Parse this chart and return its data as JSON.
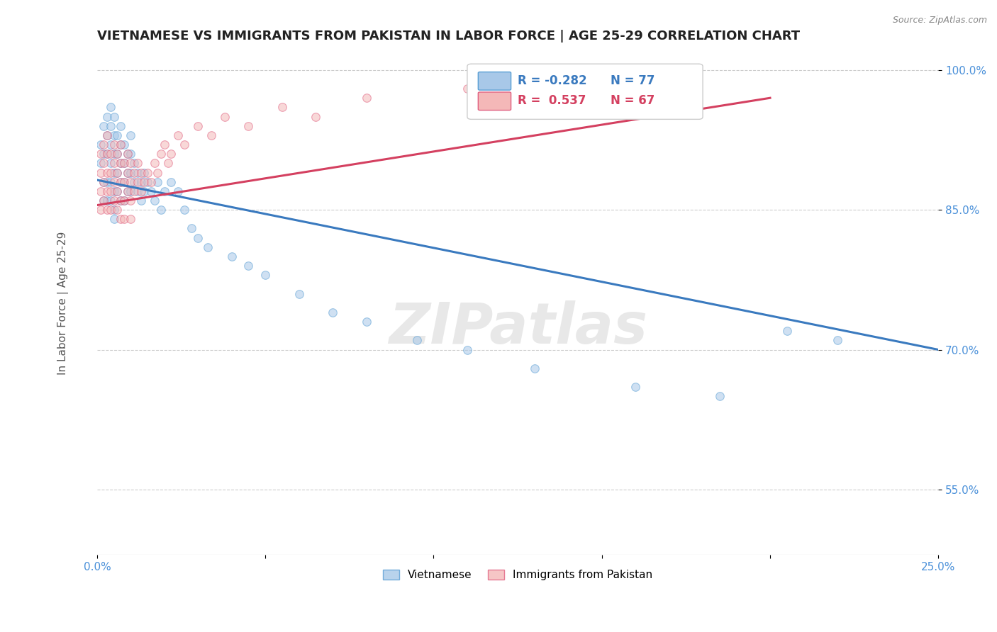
{
  "title": "VIETNAMESE VS IMMIGRANTS FROM PAKISTAN IN LABOR FORCE | AGE 25-29 CORRELATION CHART",
  "source": "Source: ZipAtlas.com",
  "ylabel": "In Labor Force | Age 25-29",
  "xlim": [
    0.0,
    0.25
  ],
  "ylim": [
    0.48,
    1.02
  ],
  "xticks": [
    0.0,
    0.05,
    0.1,
    0.15,
    0.2,
    0.25
  ],
  "yticks": [
    0.55,
    0.7,
    0.85,
    1.0
  ],
  "ytick_labels": [
    "55.0%",
    "70.0%",
    "85.0%",
    "100.0%"
  ],
  "background_color": "#ffffff",
  "grid_color": "#cccccc",
  "title_color": "#222222",
  "title_fontsize": 13,
  "axis_label_color": "#555555",
  "tick_color": "#4a90d9",
  "source_color": "#888888",
  "viet_color": "#a8c8e8",
  "viet_edge_color": "#5a9fd4",
  "pak_color": "#f4b8b8",
  "pak_edge_color": "#e06080",
  "viet_line_color": "#3a7abf",
  "pak_line_color": "#d44060",
  "viet_R": -0.282,
  "viet_N": 77,
  "pak_R": 0.537,
  "pak_N": 67,
  "legend_label_viet": "Vietnamese",
  "legend_label_pak": "Immigrants from Pakistan",
  "marker_size": 70,
  "marker_alpha": 0.55,
  "line_width": 2.2,
  "viet_line_x0": 0.0,
  "viet_line_y0": 0.882,
  "viet_line_x1": 0.25,
  "viet_line_y1": 0.7,
  "pak_line_x0": 0.0,
  "pak_line_y0": 0.855,
  "pak_line_x1": 0.2,
  "pak_line_y1": 0.97,
  "viet_x": [
    0.001,
    0.001,
    0.002,
    0.002,
    0.002,
    0.002,
    0.003,
    0.003,
    0.003,
    0.003,
    0.003,
    0.004,
    0.004,
    0.004,
    0.004,
    0.004,
    0.004,
    0.005,
    0.005,
    0.005,
    0.005,
    0.005,
    0.005,
    0.005,
    0.006,
    0.006,
    0.006,
    0.006,
    0.007,
    0.007,
    0.007,
    0.007,
    0.007,
    0.008,
    0.008,
    0.008,
    0.008,
    0.009,
    0.009,
    0.009,
    0.01,
    0.01,
    0.01,
    0.01,
    0.011,
    0.011,
    0.012,
    0.012,
    0.013,
    0.013,
    0.014,
    0.014,
    0.015,
    0.016,
    0.017,
    0.018,
    0.019,
    0.02,
    0.022,
    0.024,
    0.026,
    0.028,
    0.03,
    0.033,
    0.04,
    0.045,
    0.05,
    0.06,
    0.07,
    0.08,
    0.095,
    0.11,
    0.13,
    0.16,
    0.185,
    0.205,
    0.22
  ],
  "viet_y": [
    0.92,
    0.9,
    0.94,
    0.91,
    0.88,
    0.86,
    0.95,
    0.93,
    0.91,
    0.88,
    0.86,
    0.96,
    0.94,
    0.92,
    0.9,
    0.88,
    0.86,
    0.95,
    0.93,
    0.91,
    0.89,
    0.87,
    0.85,
    0.84,
    0.93,
    0.91,
    0.89,
    0.87,
    0.94,
    0.92,
    0.9,
    0.88,
    0.86,
    0.92,
    0.9,
    0.88,
    0.86,
    0.91,
    0.89,
    0.87,
    0.93,
    0.91,
    0.89,
    0.87,
    0.9,
    0.88,
    0.89,
    0.87,
    0.88,
    0.86,
    0.89,
    0.87,
    0.88,
    0.87,
    0.86,
    0.88,
    0.85,
    0.87,
    0.88,
    0.87,
    0.85,
    0.83,
    0.82,
    0.81,
    0.8,
    0.79,
    0.78,
    0.76,
    0.74,
    0.73,
    0.71,
    0.7,
    0.68,
    0.66,
    0.65,
    0.72,
    0.71
  ],
  "pak_x": [
    0.001,
    0.001,
    0.001,
    0.001,
    0.002,
    0.002,
    0.002,
    0.002,
    0.003,
    0.003,
    0.003,
    0.003,
    0.003,
    0.004,
    0.004,
    0.004,
    0.004,
    0.005,
    0.005,
    0.005,
    0.005,
    0.006,
    0.006,
    0.006,
    0.006,
    0.007,
    0.007,
    0.007,
    0.007,
    0.007,
    0.008,
    0.008,
    0.008,
    0.008,
    0.009,
    0.009,
    0.009,
    0.01,
    0.01,
    0.01,
    0.01,
    0.011,
    0.011,
    0.012,
    0.012,
    0.013,
    0.013,
    0.014,
    0.015,
    0.016,
    0.017,
    0.018,
    0.019,
    0.02,
    0.021,
    0.022,
    0.024,
    0.026,
    0.03,
    0.034,
    0.038,
    0.045,
    0.055,
    0.065,
    0.08,
    0.11,
    0.15
  ],
  "pak_y": [
    0.91,
    0.89,
    0.87,
    0.85,
    0.92,
    0.9,
    0.88,
    0.86,
    0.93,
    0.91,
    0.89,
    0.87,
    0.85,
    0.91,
    0.89,
    0.87,
    0.85,
    0.92,
    0.9,
    0.88,
    0.86,
    0.91,
    0.89,
    0.87,
    0.85,
    0.92,
    0.9,
    0.88,
    0.86,
    0.84,
    0.9,
    0.88,
    0.86,
    0.84,
    0.91,
    0.89,
    0.87,
    0.9,
    0.88,
    0.86,
    0.84,
    0.89,
    0.87,
    0.9,
    0.88,
    0.89,
    0.87,
    0.88,
    0.89,
    0.88,
    0.9,
    0.89,
    0.91,
    0.92,
    0.9,
    0.91,
    0.93,
    0.92,
    0.94,
    0.93,
    0.95,
    0.94,
    0.96,
    0.95,
    0.97,
    0.98,
    0.99
  ]
}
